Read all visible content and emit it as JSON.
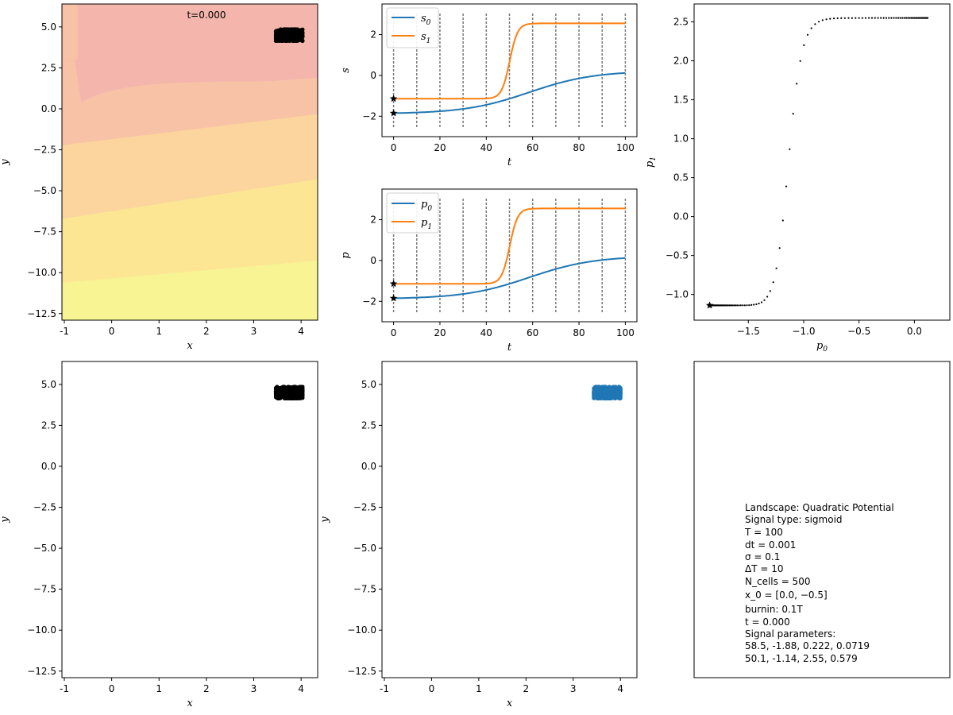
{
  "colors": {
    "s0": "#1f77b4",
    "s1": "#ff7f0e",
    "cells": "#1f77b4",
    "bands": [
      "#f3b5ac",
      "#f8c2a6",
      "#fbd59d",
      "#fce694",
      "#f8f393"
    ]
  },
  "panels": {
    "landscape": {
      "time_label": "t=0.000",
      "xlabel": "x",
      "ylabel": "y"
    },
    "signal": {
      "xlabel": "t",
      "ylabel": "s",
      "legend": [
        "s",
        "s"
      ],
      "legend_sub": [
        "0",
        "1"
      ]
    },
    "param": {
      "xlabel": "t",
      "ylabel": "p",
      "legend": [
        "p",
        "p"
      ],
      "legend_sub": [
        "0",
        "1"
      ]
    },
    "phase": {
      "xlabel": "p",
      "xlabel_sub": "0",
      "ylabel": "p",
      "ylabel_sub": "1"
    },
    "cells_black": {
      "xlabel": "x",
      "ylabel": "y"
    },
    "cells_blue": {
      "xlabel": "x",
      "ylabel": "y"
    }
  },
  "info_lines": [
    "Landscape: Quadratic Potential",
    "Signal type: sigmoid",
    "T = 100",
    "dt = 0.001",
    "σ = 0.1",
    "ΔT = 10",
    "N_cells = 500",
    "x_0 = [0.0, −0.5]",
    "burnin: 0.1T",
    "t = 0.000",
    "Signal parameters:",
    "  58.5, -1.88, 0.222, 0.0719",
    "  50.1, -1.14, 2.55, 0.579"
  ],
  "chart_data": [
    {
      "type": "heatmap",
      "name": "landscape",
      "xlim": [
        -1.05,
        4.35
      ],
      "ylim": [
        -12.9,
        6.4
      ],
      "xticks": [
        -1,
        0,
        1,
        2,
        3,
        4
      ],
      "yticks": [
        5.0,
        2.5,
        0.0,
        -2.5,
        -5.0,
        -7.5,
        -10.0,
        -12.5
      ],
      "ytick_labels": [
        "5.0",
        "2.5",
        "0.0",
        "−2.5",
        "−5.0",
        "−7.5",
        "−10.0",
        "−12.5"
      ],
      "xlabel": "x",
      "ylabel": "y",
      "cell_cluster": {
        "cx": 3.75,
        "cy": 4.5,
        "sx": 0.28,
        "sy": 0.35
      }
    },
    {
      "type": "line",
      "name": "signal",
      "xlim": [
        -5,
        105
      ],
      "ylim": [
        -3,
        3.5
      ],
      "xticks": [
        0,
        20,
        40,
        60,
        80,
        100
      ],
      "yticks": [
        -2,
        0,
        2
      ],
      "ytick_labels": [
        "−2",
        "0",
        "2"
      ],
      "vlines": [
        0,
        10,
        20,
        30,
        40,
        50,
        60,
        70,
        80,
        90,
        100
      ],
      "series": [
        {
          "name": "s0",
          "start": -1.88,
          "end": 0.222,
          "t0": 58.5,
          "rate": 0.0719
        },
        {
          "name": "s1",
          "start": -1.14,
          "end": 2.55,
          "t0": 50.1,
          "rate": 0.579
        }
      ],
      "xlabel": "t",
      "ylabel": "s"
    },
    {
      "type": "line",
      "name": "param",
      "xlim": [
        -5,
        105
      ],
      "ylim": [
        -3,
        3.5
      ],
      "xticks": [
        0,
        20,
        40,
        60,
        80,
        100
      ],
      "yticks": [
        -2,
        0,
        2
      ],
      "ytick_labels": [
        "−2",
        "0",
        "2"
      ],
      "vlines": [
        0,
        10,
        20,
        30,
        40,
        50,
        60,
        70,
        80,
        90,
        100
      ],
      "series": [
        {
          "name": "p0",
          "start": -1.88,
          "end": 0.222,
          "t0": 58.5,
          "rate": 0.0719
        },
        {
          "name": "p1",
          "start": -1.14,
          "end": 2.55,
          "t0": 50.1,
          "rate": 0.579
        }
      ],
      "xlabel": "t",
      "ylabel": "p"
    },
    {
      "type": "line",
      "name": "phase",
      "xlim": [
        -1.99,
        0.32
      ],
      "ylim": [
        -1.33,
        2.73
      ],
      "xticks": [
        -1.5,
        -1.0,
        -0.5,
        0.0
      ],
      "xtick_labels": [
        "−1.5",
        "−1.0",
        "−0.5",
        "0.0"
      ],
      "yticks": [
        -1.0,
        -0.5,
        0.0,
        0.5,
        1.0,
        1.5,
        2.0,
        2.5
      ],
      "ytick_labels": [
        "−1.0",
        "−0.5",
        "0.0",
        "0.5",
        "1.0",
        "1.5",
        "2.0",
        "2.5"
      ],
      "xlabel": "p0",
      "ylabel": "p1"
    },
    {
      "type": "scatter",
      "name": "cells_black",
      "xlim": [
        -1.05,
        4.35
      ],
      "ylim": [
        -12.9,
        6.4
      ],
      "xticks": [
        -1,
        0,
        1,
        2,
        3,
        4
      ],
      "yticks": [
        5.0,
        2.5,
        0.0,
        -2.5,
        -5.0,
        -7.5,
        -10.0,
        -12.5
      ],
      "ytick_labels": [
        "5.0",
        "2.5",
        "0.0",
        "−2.5",
        "−5.0",
        "−7.5",
        "−10.0",
        "−12.5"
      ],
      "cluster": {
        "cx": 3.75,
        "cy": 4.5,
        "sx": 0.28,
        "sy": 0.35,
        "n": 500
      },
      "xlabel": "x",
      "ylabel": "y"
    },
    {
      "type": "scatter",
      "name": "cells_blue",
      "xlim": [
        -1.05,
        4.35
      ],
      "ylim": [
        -12.9,
        6.4
      ],
      "xticks": [
        -1,
        0,
        1,
        2,
        3,
        4
      ],
      "yticks": [
        5.0,
        2.5,
        0.0,
        -2.5,
        -5.0,
        -7.5,
        -10.0,
        -12.5
      ],
      "ytick_labels": [
        "5.0",
        "2.5",
        "0.0",
        "−2.5",
        "−5.0",
        "−7.5",
        "−10.0",
        "−12.5"
      ],
      "cluster": {
        "cx": 3.72,
        "cy": 4.5,
        "sx": 0.28,
        "sy": 0.35,
        "n": 500
      },
      "xlabel": "x",
      "ylabel": "y"
    }
  ]
}
